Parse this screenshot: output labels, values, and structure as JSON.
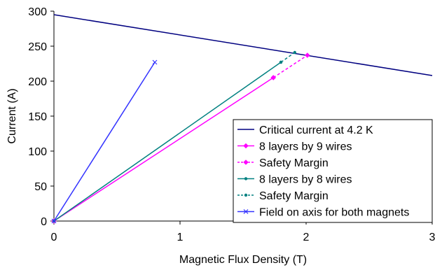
{
  "chart_data": {
    "type": "line",
    "title": "",
    "xlabel": "Magnetic Flux Density (T)",
    "ylabel": "Current (A)",
    "xlim": [
      0,
      3
    ],
    "ylim": [
      0,
      300
    ],
    "x_ticks": [
      0,
      1,
      2,
      3
    ],
    "y_ticks": [
      0,
      50,
      100,
      150,
      200,
      250,
      300
    ],
    "grid": false,
    "legend_position": "bottom-right",
    "series": [
      {
        "name": "Critical current at 4.2 K",
        "color": "#000080",
        "dash": "solid",
        "marker": "none",
        "points": [
          [
            0,
            295
          ],
          [
            3,
            208
          ]
        ]
      },
      {
        "name": "8 layers by 9 wires",
        "color": "#ff00ff",
        "dash": "solid",
        "marker": "diamond",
        "points": [
          [
            0,
            0
          ],
          [
            1.74,
            205
          ]
        ]
      },
      {
        "name": "Safety Margin",
        "color": "#ff00ff",
        "dash": "dashed",
        "marker": "diamond",
        "points": [
          [
            1.74,
            205
          ],
          [
            2.01,
            237
          ]
        ]
      },
      {
        "name": "8 layers by 8 wires",
        "color": "#008080",
        "dash": "solid",
        "marker": "dot",
        "points": [
          [
            0,
            0
          ],
          [
            1.8,
            227
          ]
        ]
      },
      {
        "name": "Safety Margin",
        "color": "#008080",
        "dash": "dashed",
        "marker": "dot",
        "points": [
          [
            1.8,
            227
          ],
          [
            1.91,
            241
          ]
        ]
      },
      {
        "name": "Field on axis for both magnets",
        "color": "#3333ff",
        "dash": "solid",
        "marker": "x",
        "points": [
          [
            0,
            0
          ],
          [
            0.8,
            227
          ]
        ]
      }
    ]
  }
}
